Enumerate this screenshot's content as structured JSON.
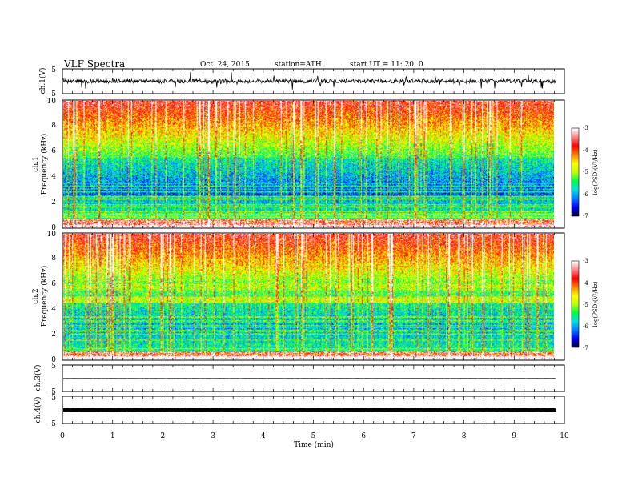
{
  "header": {
    "title": "VLF  Spectra",
    "date": "Oct. 24, 2015",
    "station": "station=ATH",
    "start": "start  UT  =   11: 20: 0"
  },
  "chart_data": [
    {
      "type": "line",
      "name": "ch1-waveform",
      "ylabel": "ch.1(V)",
      "ylim": [
        -5,
        5
      ],
      "yticks": [
        "5",
        "-5"
      ],
      "xlim": [
        0,
        10
      ],
      "baseline": 0
    },
    {
      "type": "heatmap",
      "name": "ch1-spectrogram",
      "ylabel": "ch.1\nFrequency  (kHz)",
      "ylabel_lines": [
        "ch.1",
        "Frequency  (kHz)"
      ],
      "ylim": [
        0,
        10
      ],
      "yticks": [
        "0",
        "2",
        "4",
        "6",
        "8",
        "10"
      ],
      "xlim": [
        0,
        10
      ],
      "data_end_min": 9.83,
      "colorbar": {
        "label": "log(PSD)(V²/Hz)",
        "range": [
          -7,
          -3
        ],
        "ticks": [
          "-7",
          "-6",
          "-5",
          "-4",
          "-3"
        ],
        "colors": [
          "#000040",
          "#0000ff",
          "#0080ff",
          "#00e0e0",
          "#00ff40",
          "#c0ff00",
          "#ffff00",
          "#ff8000",
          "#ff0000",
          "#ff8080",
          "#ffffff"
        ]
      }
    },
    {
      "type": "heatmap",
      "name": "ch2-spectrogram",
      "ylabel": "ch.2\nFrequency  (kHz)",
      "ylabel_lines": [
        "ch.2",
        "Frequency  (kHz)"
      ],
      "ylim": [
        0,
        10
      ],
      "yticks": [
        "0",
        "2",
        "4",
        "6",
        "8",
        "10"
      ],
      "xlim": [
        0,
        10
      ],
      "data_end_min": 9.83,
      "colorbar": {
        "label": "log(PSD)(V²/Hz)",
        "range": [
          -7,
          -3
        ],
        "ticks": [
          "-7",
          "-6",
          "-5",
          "-4",
          "-3"
        ],
        "colors": [
          "#000040",
          "#0000ff",
          "#0080ff",
          "#00e0e0",
          "#00ff40",
          "#c0ff00",
          "#ffff00",
          "#ff8000",
          "#ff0000",
          "#ff8080",
          "#ffffff"
        ]
      }
    },
    {
      "type": "line",
      "name": "ch3-waveform",
      "ylabel": "ch.3(V)",
      "ylim": [
        -5,
        5
      ],
      "yticks": [
        "5",
        "-5"
      ],
      "xlim": [
        0,
        10
      ],
      "baseline": 0
    },
    {
      "type": "line",
      "name": "ch4-waveform",
      "ylabel": "ch.4(V)",
      "ylim": [
        -5,
        5
      ],
      "yticks": [
        "5",
        "-5"
      ],
      "xlim": [
        0,
        10
      ],
      "baseline": 0
    }
  ],
  "xaxis": {
    "label": "Time  (min)",
    "ticks": [
      "0",
      "1",
      "2",
      "3",
      "4",
      "5",
      "6",
      "7",
      "8",
      "9",
      "10"
    ],
    "range": [
      0,
      10
    ]
  }
}
